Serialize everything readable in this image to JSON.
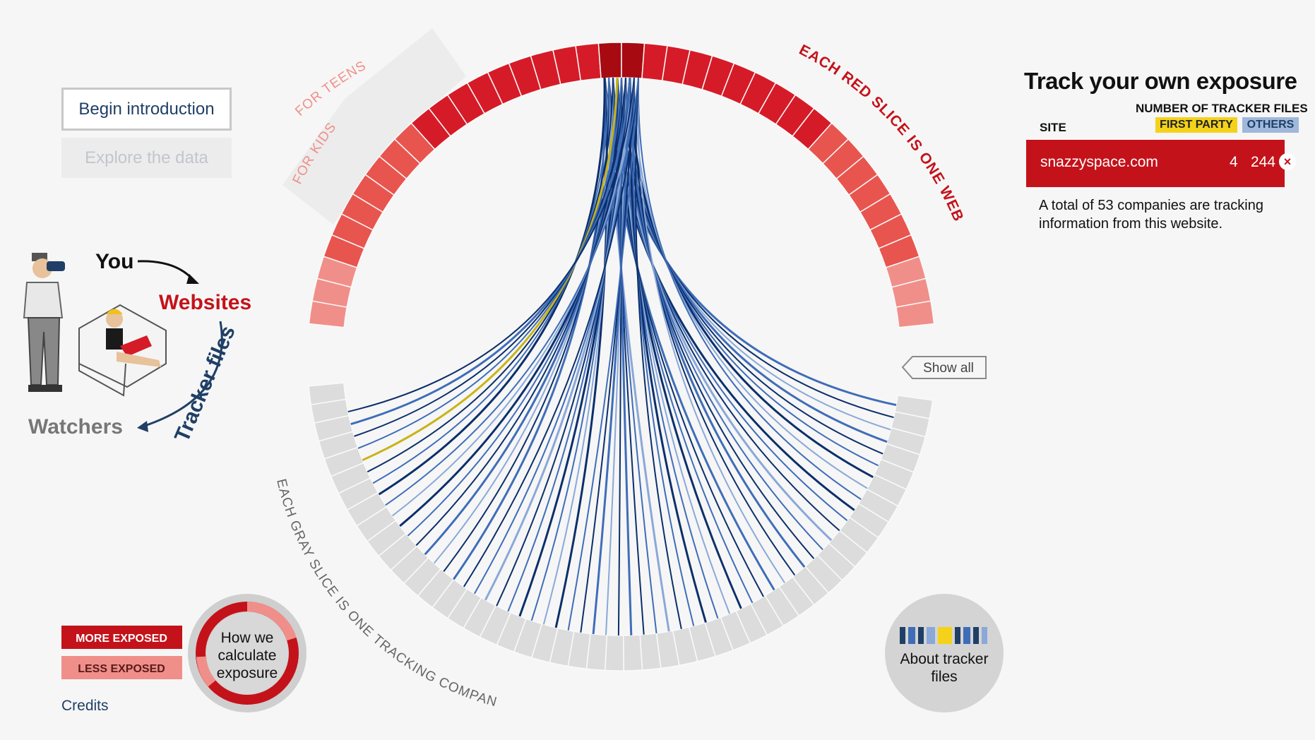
{
  "nav": {
    "intro_label": "Begin introduction",
    "explore_label": "Explore the data"
  },
  "legend_diagram": {
    "you": "You",
    "websites": "Websites",
    "tracker_files": "Tracker files",
    "watchers": "Watchers"
  },
  "ring": {
    "for_kids": "FOR KIDS",
    "for_teens": "FOR TEENS",
    "red_slice_note": "EACH RED SLICE IS ONE WEBSITE",
    "gray_slice_note": "EACH GRAY SLICE IS ONE TRACKING COMPANY",
    "show_all": "Show all"
  },
  "panel": {
    "title": "Track your own exposure",
    "number_header": "NUMBER OF TRACKER FILES",
    "site_header": "SITE",
    "first_party_label": "FIRST PARTY",
    "others_label": "OTHERS",
    "site_name": "snazzyspace.com",
    "first_party_count": "4",
    "others_count": "244",
    "total_text": "A total of 53 companies are tracking information from this website."
  },
  "exposure_legend": {
    "more": "MORE EXPOSED",
    "less": "LESS EXPOSED",
    "how_line1": "How we",
    "how_line2": "calculate",
    "how_line3": "exposure"
  },
  "about": {
    "line1": "About tracker",
    "line2": "files"
  },
  "footer": {
    "credits": "Credits"
  },
  "colors": {
    "red_dark": "#a80a12",
    "red": "#d61b28",
    "red_light": "#f08f89",
    "gray_slice": "#dcdcdc",
    "line_blue_dark": "#0b2f6b",
    "line_blue": "#3f6db8",
    "line_blue_light": "#8aa8d8",
    "line_yellow": "#c8b418",
    "navy": "#1f3f66"
  }
}
